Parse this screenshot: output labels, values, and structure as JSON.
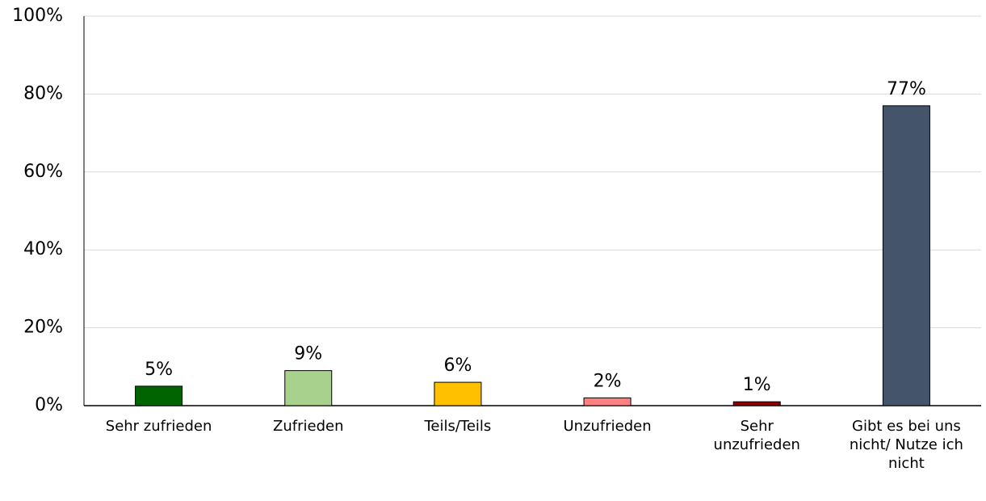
{
  "chart_data": {
    "type": "bar",
    "categories": [
      "Sehr zufrieden",
      "Zufrieden",
      "Teils/Teils",
      "Unzufrieden",
      "Sehr unzufrieden",
      "Gibt es bei uns nicht/ Nutze ich nicht"
    ],
    "values": [
      5,
      9,
      6,
      2,
      1,
      77
    ],
    "value_labels": [
      "5%",
      "9%",
      "6%",
      "2%",
      "1%",
      "77%"
    ],
    "colors": [
      "#006400",
      "#a9d18e",
      "#ffc000",
      "#ff8080",
      "#8b0000",
      "#44546a"
    ],
    "ylim": [
      0,
      100
    ],
    "yticks": [
      {
        "value": 0,
        "label": "0%"
      },
      {
        "value": 20,
        "label": "20%"
      },
      {
        "value": 40,
        "label": "40%"
      },
      {
        "value": 60,
        "label": "60%"
      },
      {
        "value": 80,
        "label": "80%"
      },
      {
        "value": 100,
        "label": "100%"
      }
    ],
    "grid": true
  }
}
